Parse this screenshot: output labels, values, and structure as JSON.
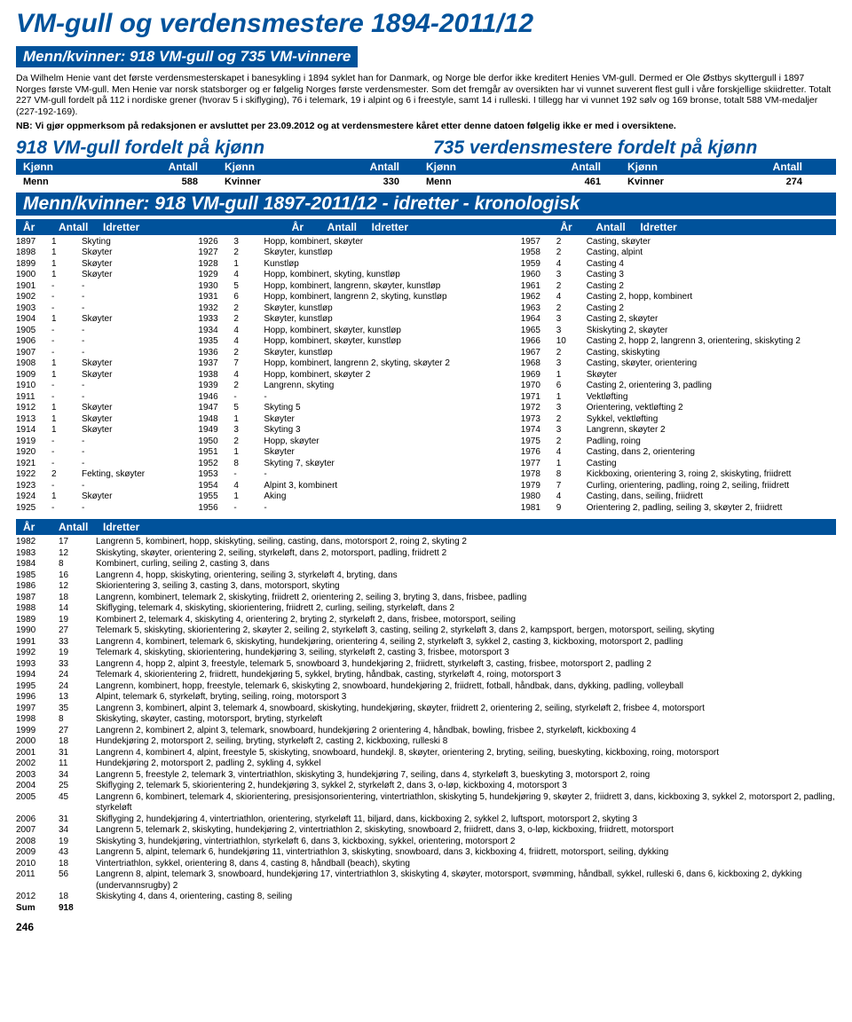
{
  "title": "VM-gull og verdensmestere 1894-2011/12",
  "subheader": "Menn/kvinner: 918 VM-gull og 735 VM-vinnere",
  "intro": "Da Wilhelm Henie vant det første verdensmesterskapet i banesykling i 1894 syklet han for Danmark, og Norge ble derfor ikke kreditert Henies VM-gull. Dermed er Ole Østbys skyttergull i 1897 Norges første VM-gull. Men Henie var norsk statsborger og er følgelig Norges første verdensmester. Som det fremgår av oversikten har vi vunnet suverent flest gull i våre forskjellige skiidretter. Totalt 227 VM-gull fordelt på 112 i nordiske grener (hvorav 5 i skiflyging), 76 i telemark, 19 i alpint og 6 i freestyle, samt 14 i rulleski. I tillegg har vi vunnet 192 sølv og 169 bronse, totalt 588 VM-medaljer (227-192-169).",
  "nb": "NB: Vi gjør oppmerksom på redaksjonen er avsluttet per 23.09.2012 og at verdensmestere kåret etter denne datoen følgelig ikke er med i oversiktene.",
  "split": {
    "left": "918 VM-gull fordelt på kjønn",
    "right": "735 verdensmestere fordelt på kjønn"
  },
  "kh": {
    "a": "Kjønn",
    "b": "Antall"
  },
  "kv": {
    "ml": "Menn",
    "man": "588",
    "kl": "Kvinner",
    "kan": "330",
    "ml2": "Menn",
    "man2": "461",
    "kl2": "Kvinner",
    "kan2": "274"
  },
  "longhead": "Menn/kvinner: 918 VM-gull 1897-2011/12 - idretter - kronologisk",
  "th": {
    "ar": "År",
    "an": "Antall",
    "id": "Idretter"
  },
  "col1": [
    [
      "1897",
      "1",
      "Skyting"
    ],
    [
      "1898",
      "1",
      "Skøyter"
    ],
    [
      "1899",
      "1",
      "Skøyter"
    ],
    [
      "1900",
      "1",
      "Skøyter"
    ],
    [
      "1901",
      "-",
      "-"
    ],
    [
      "1902",
      "-",
      "-"
    ],
    [
      "1903",
      "-",
      "-"
    ],
    [
      "1904",
      "1",
      "Skøyter"
    ],
    [
      "1905",
      "-",
      "-"
    ],
    [
      "1906",
      "-",
      "-"
    ],
    [
      "1907",
      "-",
      "-"
    ],
    [
      "1908",
      "1",
      "Skøyter"
    ],
    [
      "1909",
      "1",
      "Skøyter"
    ],
    [
      "1910",
      "-",
      "-"
    ],
    [
      "1911",
      "-",
      "-"
    ],
    [
      "1912",
      "1",
      "Skøyter"
    ],
    [
      "1913",
      "1",
      "Skøyter"
    ],
    [
      "1914",
      "1",
      "Skøyter"
    ],
    [
      "1919",
      "-",
      "-"
    ],
    [
      "1920",
      "-",
      "-"
    ],
    [
      "1921",
      "-",
      "-"
    ],
    [
      "1922",
      "2",
      "Fekting, skøyter"
    ],
    [
      "1923",
      "-",
      "-"
    ],
    [
      "1924",
      "1",
      "Skøyter"
    ],
    [
      "1925",
      "-",
      "-"
    ]
  ],
  "col2": [
    [
      "1926",
      "3",
      "Hopp, kombinert, skøyter"
    ],
    [
      "1927",
      "2",
      "Skøyter, kunstløp"
    ],
    [
      "1928",
      "1",
      "Kunstløp"
    ],
    [
      "1929",
      "4",
      "Hopp, kombinert, skyting, kunstløp"
    ],
    [
      "1930",
      "5",
      "Hopp, kombinert, langrenn, skøyter, kunstløp"
    ],
    [
      "1931",
      "6",
      "Hopp, kombinert, langrenn 2, skyting, kunstløp"
    ],
    [
      "1932",
      "2",
      "Skøyter, kunstløp"
    ],
    [
      "1933",
      "2",
      "Skøyter, kunstløp"
    ],
    [
      "1934",
      "4",
      "Hopp, kombinert, skøyter, kunstløp"
    ],
    [
      "1935",
      "4",
      "Hopp, kombinert, skøyter, kunstløp"
    ],
    [
      "1936",
      "2",
      "Skøyter, kunstløp"
    ],
    [
      "1937",
      "7",
      "Hopp, kombinert, langrenn 2, skyting, skøyter 2"
    ],
    [
      "1938",
      "4",
      "Hopp, kombinert, skøyter 2"
    ],
    [
      "1939",
      "2",
      "Langrenn, skyting"
    ],
    [
      "1946",
      "-",
      "-"
    ],
    [
      "1947",
      "5",
      "Skyting 5"
    ],
    [
      "1948",
      "1",
      "Skøyter"
    ],
    [
      "1949",
      "3",
      "Skyting 3"
    ],
    [
      "1950",
      "2",
      "Hopp, skøyter"
    ],
    [
      "1951",
      "1",
      "Skøyter"
    ],
    [
      "1952",
      "8",
      "Skyting 7, skøyter"
    ],
    [
      "1953",
      "-",
      "-"
    ],
    [
      "1954",
      "4",
      "Alpint 3, kombinert"
    ],
    [
      "1955",
      "1",
      "Aking"
    ],
    [
      "1956",
      "-",
      "-"
    ]
  ],
  "col3": [
    [
      "1957",
      "2",
      "Casting, skøyter"
    ],
    [
      "1958",
      "2",
      "Casting, alpint"
    ],
    [
      "1959",
      "4",
      "Casting 4"
    ],
    [
      "1960",
      "3",
      "Casting 3"
    ],
    [
      "1961",
      "2",
      "Casting 2"
    ],
    [
      "1962",
      "4",
      "Casting 2, hopp, kombinert"
    ],
    [
      "1963",
      "2",
      "Casting 2"
    ],
    [
      "1964",
      "3",
      "Casting 2, skøyter"
    ],
    [
      "1965",
      "3",
      "Skiskyting 2, skøyter"
    ],
    [
      "1966",
      "10",
      "Casting 2, hopp 2, langrenn 3, orientering, skiskyting 2"
    ],
    [
      "1967",
      "2",
      "Casting, skiskyting"
    ],
    [
      "1968",
      "3",
      "Casting, skøyter, orientering"
    ],
    [
      "1969",
      "1",
      "Skøyter"
    ],
    [
      "1970",
      "6",
      "Casting 2, orientering 3, padling"
    ],
    [
      "1971",
      "1",
      "Vektløfting"
    ],
    [
      "1972",
      "3",
      "Orientering, vektløfting 2"
    ],
    [
      "1973",
      "2",
      "Sykkel, vektløfting"
    ],
    [
      "1974",
      "3",
      "Langrenn, skøyter 2"
    ],
    [
      "1975",
      "2",
      "Padling, roing"
    ],
    [
      "1976",
      "4",
      "Casting, dans 2, orientering"
    ],
    [
      "1977",
      "1",
      "Casting"
    ],
    [
      "1978",
      "8",
      "Kickboxing, orientering 3, roing 2, skiskyting, friidrett"
    ],
    [
      "1979",
      "7",
      "Curling, orientering, padling, roing 2, seiling, friidrett"
    ],
    [
      "1980",
      "4",
      "Casting, dans, seiling, friidrett"
    ],
    [
      "1981",
      "9",
      "Orientering 2, padling, seiling 3, skøyter 2, friidrett"
    ]
  ],
  "rowsFull": [
    [
      "1982",
      "17",
      "Langrenn 5, kombinert, hopp, skiskyting, seiling, casting, dans, motorsport 2, roing 2, skyting 2"
    ],
    [
      "1983",
      "12",
      "Skiskyting, skøyter, orientering 2, seiling, styrkeløft, dans 2, motorsport, padling, friidrett 2"
    ],
    [
      "1984",
      "8",
      "Kombinert, curling, seiling 2, casting 3, dans"
    ],
    [
      "1985",
      "16",
      "Langrenn 4, hopp, skiskyting, orientering, seiling 3, styrkeløft 4, bryting, dans"
    ],
    [
      "1986",
      "12",
      "Skiorientering 3, seiling 3, casting 3, dans, motorsport, skyting"
    ],
    [
      "1987",
      "18",
      "Langrenn, kombinert, telemark 2, skiskyting, friidrett 2, orientering 2, seiling 3, bryting 3, dans, frisbee, padling"
    ],
    [
      "1988",
      "14",
      "Skiflyging, telemark 4, skiskyting, skiorientering, friidrett 2, curling, seiling, styrkeløft, dans 2"
    ],
    [
      "1989",
      "19",
      "Kombinert 2, telemark 4, skiskyting 4, orientering 2, bryting 2, styrkeløft 2, dans, frisbee, motorsport, seiling"
    ],
    [
      "1990",
      "27",
      "Telemark 5, skiskyting, skiorientering 2, skøyter 2, seiling 2, styrkeløft 3, casting, seiling 2, styrkeløft 3, dans 2, kampsport, bergen, motorsport, seiling, skyting"
    ],
    [
      "1991",
      "33",
      "Langrenn 4, kombinert, telemark 6, skiskyting, hundekjøring, orientering 4, seiling 2, styrkeløft 3, sykkel 2, casting 3, kickboxing, motorsport 2, padling"
    ],
    [
      "1992",
      "19",
      "Telemark 4, skiskyting, skiorientering, hundekjøring 3, seiling, styrkeløft 2, casting 3, frisbee, motorsport 3"
    ],
    [
      "1993",
      "33",
      "Langrenn 4, hopp 2, alpint 3, freestyle, telemark 5, snowboard 3, hundekjøring 2, friidrett, styrkeløft 3, casting, frisbee, motorsport 2, padling 2"
    ],
    [
      "1994",
      "24",
      "Telemark 4, skiorientering 2, friidrett, hundekjøring 5, sykkel, bryting, håndbak, casting, styrkeløft 4, roing, motorsport 3"
    ],
    [
      "1995",
      "24",
      "Langrenn, kombinert, hopp, freestyle, telemark 6, skiskyting 2, snowboard, hundekjøring 2, friidrett, fotball, håndbak, dans, dykking, padling, volleyball"
    ],
    [
      "1996",
      "13",
      "Alpint, telemark 6, styrkeløft, bryting, seiling, roing, motorsport 3"
    ],
    [
      "1997",
      "35",
      "Langrenn 3, kombinert, alpint 3, telemark 4, snowboard, skiskyting, hundekjøring, skøyter, friidrett 2, orientering 2, seiling, styrkeløft 2, frisbee 4, motorsport"
    ],
    [
      "1998",
      "8",
      "Skiskyting, skøyter, casting, motorsport, bryting, styrkeløft"
    ],
    [
      "1999",
      "27",
      "Langrenn 2, kombinert 2, alpint 3, telemark, snowboard, hundekjøring 2 orientering 4, håndbak, bowling, frisbee 2, styrkeløft, kickboxing 4"
    ],
    [
      "2000",
      "18",
      "Hundekjøring 2, motorsport 2, seiling, bryting, styrkeløft 2, casting 2, kickboxing, rulleski 8"
    ],
    [
      "2001",
      "31",
      "Langrenn 4, kombinert 4, alpint, freestyle 5, skiskyting, snowboard, hundekjl. 8, skøyter, orientering 2, bryting, seiling, bueskyting, kickboxing, roing, motorsport"
    ],
    [
      "2002",
      "11",
      "Hundekjøring 2, motorsport 2, padling 2, sykling 4, sykkel"
    ],
    [
      "2003",
      "34",
      "Langrenn 5, freestyle 2, telemark 3, vintertriathlon, skiskyting 3, hundekjøring 7, seiling, dans 4, styrkeløft 3, bueskyting 3, motorsport 2, roing"
    ],
    [
      "2004",
      "25",
      "Skiflyging 2, telemark 5, skiorientering 2, hundekjøring 3, sykkel 2, styrkeløft 2, dans 3, o-løp, kickboxing 4, motorsport 3"
    ],
    [
      "2005",
      "45",
      "Langrenn 6, kombinert, telemark 4, skiorientering, presisjonsorientering, vintertriathlon, skiskyting 5, hundekjøring 9, skøyter 2, friidrett 3, dans, kickboxing 3, sykkel 2, motorsport 2, padling, styrkeløft"
    ],
    [
      "2006",
      "31",
      "Skiflyging 2, hundekjøring 4, vintertriathlon, orientering, styrkeløft 11, biljard, dans, kickboxing 2, sykkel 2, luftsport, motorsport 2, skyting 3"
    ],
    [
      "2007",
      "34",
      "Langrenn 5, telemark 2, skiskyting, hundekjøring 2, vintertriathlon 2, skiskyting, snowboard 2, friidrett, dans 3, o-løp, kickboxing, friidrett, motorsport"
    ],
    [
      "2008",
      "19",
      "Skiskyting 3, hundekjøring, vintertriathlon, styrkeløft 6, dans 3, kickboxing, sykkel, orientering, motorsport 2"
    ],
    [
      "2009",
      "43",
      "Langrenn 5, alpint, telemark 6, hundekjøring 11, vintertriathlon 3, skiskyting, snowboard, dans 3, kickboxing 4, friidrett, motorsport, seiling, dykking"
    ],
    [
      "2010",
      "18",
      "Vintertriathlon, sykkel, orientering 8, dans 4, casting 8, håndball (beach), skyting"
    ],
    [
      "2011",
      "56",
      "Langrenn 8, alpint, telemark 3, snowboard, hundekjøring 17, vintertriathlon 3, skiskyting 4, skøyter, motorsport, svømming, håndball, sykkel, rulleski 6, dans 6, kickboxing 2, dykking (undervannsrugby) 2"
    ],
    [
      "2012",
      "18",
      "Skiskyting 4, dans 4, orientering, casting 8, seiling"
    ],
    [
      "Sum",
      "918",
      ""
    ]
  ],
  "page": "246"
}
